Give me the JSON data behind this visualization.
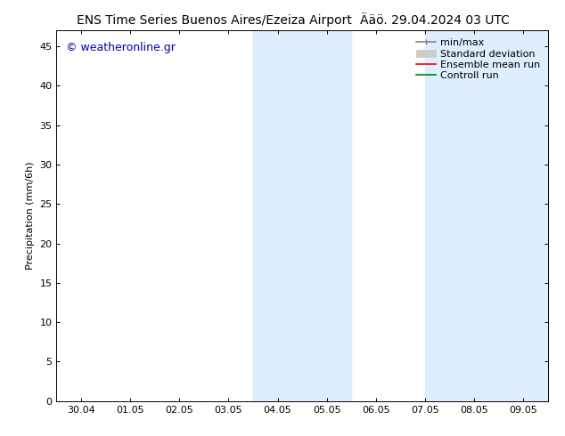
{
  "title_left": "ENS Time Series Buenos Aires/Ezeiza Airport",
  "title_right": "Ääö. 29.04.2024 03 UTC",
  "ylabel": "Precipitation (mm/6h)",
  "ylim": [
    0,
    47
  ],
  "yticks": [
    0,
    5,
    10,
    15,
    20,
    25,
    30,
    35,
    40,
    45
  ],
  "xlim_start": -0.5,
  "xlim_end": 9.5,
  "xtick_positions": [
    0,
    1,
    2,
    3,
    4,
    5,
    6,
    7,
    8,
    9
  ],
  "xtick_labels": [
    "30.04",
    "01.05",
    "02.05",
    "03.05",
    "04.05",
    "05.05",
    "06.05",
    "07.05",
    "08.05",
    "09.05"
  ],
  "shaded_bands": [
    {
      "x_start": 3.5,
      "x_end": 5.5
    },
    {
      "x_start": 7.0,
      "x_end": 9.5
    }
  ],
  "shade_color": "#ddeeff",
  "watermark": "© weatheronline.gr",
  "watermark_color": "#0000cc",
  "legend_labels": [
    "min/max",
    "Standard deviation",
    "Ensemble mean run",
    "Controll run"
  ],
  "legend_line_color": "#888888",
  "legend_std_color": "#cccccc",
  "legend_ens_color": "#ff0000",
  "legend_ctrl_color": "#008000",
  "bg_color": "#ffffff",
  "plot_bg_color": "#ffffff",
  "border_color": "#000000",
  "title_fontsize": 10,
  "tick_fontsize": 8,
  "ylabel_fontsize": 8,
  "watermark_fontsize": 9,
  "legend_fontsize": 8,
  "figsize": [
    6.34,
    4.9
  ],
  "dpi": 100
}
